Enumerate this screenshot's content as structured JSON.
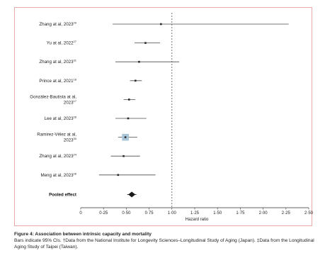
{
  "chart_data": {
    "type": "forest",
    "xlabel": "Hazard ratio",
    "xlim": [
      0,
      2.5
    ],
    "xticks": [
      "0",
      "0·25",
      "0·50",
      "0·75",
      "1·00",
      "1·25",
      "1·50",
      "1·75",
      "2·00",
      "2·25",
      "2·50"
    ],
    "reference_line": 1.0,
    "rows": [
      {
        "label": "Zhang at al, 2023",
        "sup": "29",
        "hr": 0.88,
        "lower": 0.35,
        "upper": 2.28,
        "emphasis": false
      },
      {
        "label": "Yu at al, 2022",
        "sup": "27",
        "hr": 0.71,
        "lower": 0.59,
        "upper": 0.87,
        "emphasis": false
      },
      {
        "label": "Zhang at al, 2023",
        "sup": "31",
        "hr": 0.64,
        "lower": 0.38,
        "upper": 1.08,
        "emphasis": false
      },
      {
        "label": "Prince at al, 2021",
        "sup": "18",
        "hr": 0.6,
        "lower": 0.54,
        "upper": 0.67,
        "emphasis": false
      },
      {
        "label": "González-Bautista at al, 2023",
        "sup": "17",
        "hr": 0.53,
        "lower": 0.47,
        "upper": 0.6,
        "emphasis": false
      },
      {
        "label": "Lee at al, 2023",
        "sup": "28",
        "hr": 0.52,
        "lower": 0.38,
        "upper": 0.72,
        "emphasis": false
      },
      {
        "label": "Ramirez-Vélez at al, 2023",
        "sup": "30",
        "hr": 0.49,
        "lower": 0.41,
        "upper": 0.62,
        "emphasis": true
      },
      {
        "label": "Zhang at al, 2023",
        "sup": "24",
        "hr": 0.47,
        "lower": 0.33,
        "upper": 0.65,
        "emphasis": false
      },
      {
        "label": "Meng at al, 2023",
        "sup": "26",
        "hr": 0.41,
        "lower": 0.2,
        "upper": 0.82,
        "emphasis": false
      }
    ],
    "pooled": {
      "label": "Pooled effect",
      "hr": 0.56,
      "lower": 0.51,
      "upper": 0.61
    }
  },
  "caption": {
    "title": "Figure 4: Association between intrinsic capacity and mortality",
    "notes": "Bars indicate 95% CIs. †Data from the National Institute for Longevity Sciences–Longitudinal Study of Aging (Japan). ‡Data from the Longitudinal Aging Study of Taipei (Taiwan)."
  },
  "colors": {
    "frame": "#e8a9a9",
    "line": "#4a4a4a",
    "point": "#2b2b2b",
    "emphasis_box": "#a9c7d9",
    "pooled": "#1a1a1a",
    "reference": "#555555"
  }
}
